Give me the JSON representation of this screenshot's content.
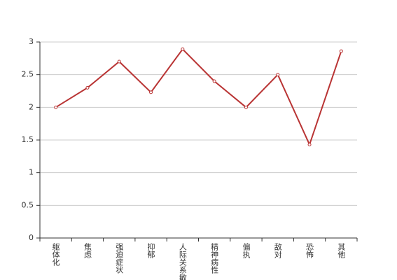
{
  "chart_data": {
    "type": "line",
    "categories": [
      "躯体化",
      "焦虑",
      "强迫症状",
      "抑郁",
      "人际关系敏感",
      "精神病性",
      "偏执",
      "敌对",
      "恐怖",
      "其他"
    ],
    "series": [
      {
        "color": "#b93434",
        "values": [
          2.0,
          2.3,
          2.7,
          2.23,
          2.89,
          2.4,
          2.0,
          2.5,
          1.43,
          2.86
        ]
      }
    ],
    "ylim": [
      0,
      3
    ],
    "yticks": [
      0,
      0.5,
      1,
      1.5,
      2,
      2.5,
      3
    ],
    "grid": true
  }
}
